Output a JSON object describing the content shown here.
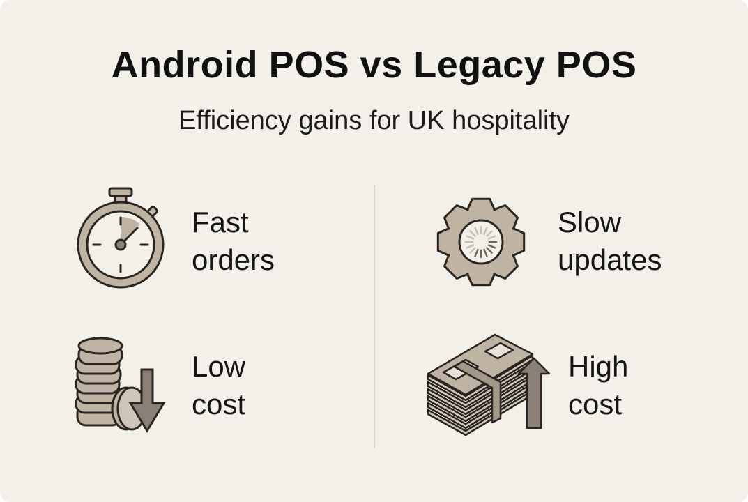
{
  "header": {
    "title": "Android POS vs Legacy POS",
    "subtitle": "Efficiency gains for UK hospitality"
  },
  "items": [
    {
      "line1": "Fast",
      "line2": "orders",
      "icon": "stopwatch-icon"
    },
    {
      "line1": "Slow",
      "line2": "updates",
      "icon": "gear-loading-icon"
    },
    {
      "line1": "Low",
      "line2": "cost",
      "icon": "coins-down-arrow-icon"
    },
    {
      "line1": "High",
      "line2": "cost",
      "icon": "cash-stack-up-arrow-icon"
    }
  ],
  "colors": {
    "background": "#f3f0ea",
    "icon_fill": "#bfb3a3",
    "outline": "#2a2520",
    "arrow": "#8a8075"
  }
}
